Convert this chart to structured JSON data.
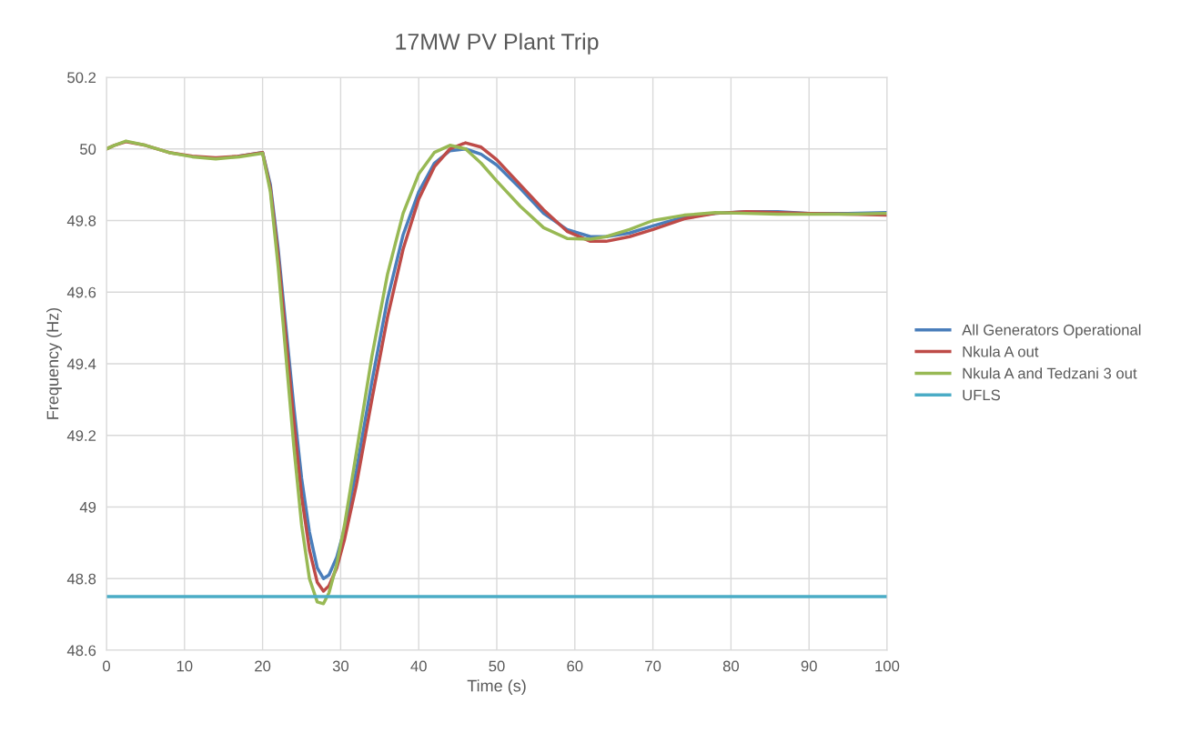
{
  "chart_data": {
    "type": "line",
    "title": "17MW PV Plant Trip",
    "xlabel": "Time (s)",
    "ylabel": "Frequency (Hz)",
    "x": [
      0,
      1,
      2.5,
      5,
      8,
      11,
      14,
      17,
      20,
      21,
      22,
      23,
      24,
      25,
      26,
      27,
      27.8,
      28.5,
      29.5,
      30.5,
      32,
      34,
      36,
      38,
      40,
      42,
      44,
      46,
      48,
      50,
      53,
      56,
      59,
      62,
      64,
      67,
      70,
      74,
      78,
      82,
      86,
      90,
      95,
      100
    ],
    "series": [
      {
        "name": "All Generators Operational",
        "color": "#4a7ebb",
        "values": [
          null,
          null,
          null,
          null,
          null,
          null,
          null,
          49.98,
          49.99,
          49.9,
          49.72,
          49.5,
          49.28,
          49.08,
          48.93,
          48.83,
          48.8,
          48.81,
          48.86,
          48.94,
          49.1,
          49.35,
          49.58,
          49.76,
          49.88,
          49.96,
          49.995,
          50.0,
          49.985,
          49.955,
          49.89,
          49.82,
          49.775,
          49.755,
          49.755,
          49.765,
          49.785,
          49.81,
          49.82,
          49.825,
          49.825,
          49.82,
          49.82,
          49.822
        ]
      },
      {
        "name": "Nkula A out",
        "color": "#be4b48",
        "values": [
          50,
          50.01,
          50.02,
          50.01,
          49.99,
          49.98,
          49.975,
          49.98,
          49.99,
          49.89,
          49.7,
          49.47,
          49.24,
          49.03,
          48.88,
          48.79,
          48.765,
          48.78,
          48.83,
          48.91,
          49.06,
          49.3,
          49.53,
          49.72,
          49.86,
          49.95,
          50.0,
          50.017,
          50.005,
          49.97,
          49.9,
          49.83,
          49.77,
          49.742,
          49.742,
          49.755,
          49.775,
          49.805,
          49.82,
          49.825,
          49.822,
          49.82,
          49.818,
          49.815
        ]
      },
      {
        "name": "Nkula A and Tedzani 3 out",
        "color": "#98b954",
        "values": [
          50,
          50.01,
          50.022,
          50.01,
          49.99,
          49.978,
          49.972,
          49.978,
          49.988,
          49.88,
          49.67,
          49.42,
          49.17,
          48.95,
          48.8,
          48.735,
          48.73,
          48.76,
          48.84,
          48.95,
          49.15,
          49.42,
          49.65,
          49.82,
          49.93,
          49.99,
          50.01,
          50.0,
          49.96,
          49.91,
          49.84,
          49.78,
          49.75,
          49.748,
          49.755,
          49.775,
          49.8,
          49.815,
          49.822,
          49.82,
          49.818,
          49.818,
          49.818,
          49.82
        ]
      },
      {
        "name": "UFLS",
        "color": "#4bacc6",
        "x": [
          0,
          100
        ],
        "values": [
          48.75,
          48.75
        ]
      }
    ],
    "xlim": [
      0,
      100
    ],
    "xticks": [
      0,
      10,
      20,
      30,
      40,
      50,
      60,
      70,
      80,
      90,
      100
    ],
    "ylim": [
      48.6,
      50.2
    ],
    "yticks": [
      48.6,
      48.8,
      49,
      49.2,
      49.4,
      49.6,
      49.8,
      50,
      50.2
    ],
    "grid": true,
    "legend": "right",
    "marker": "none",
    "line_style": "solid"
  }
}
